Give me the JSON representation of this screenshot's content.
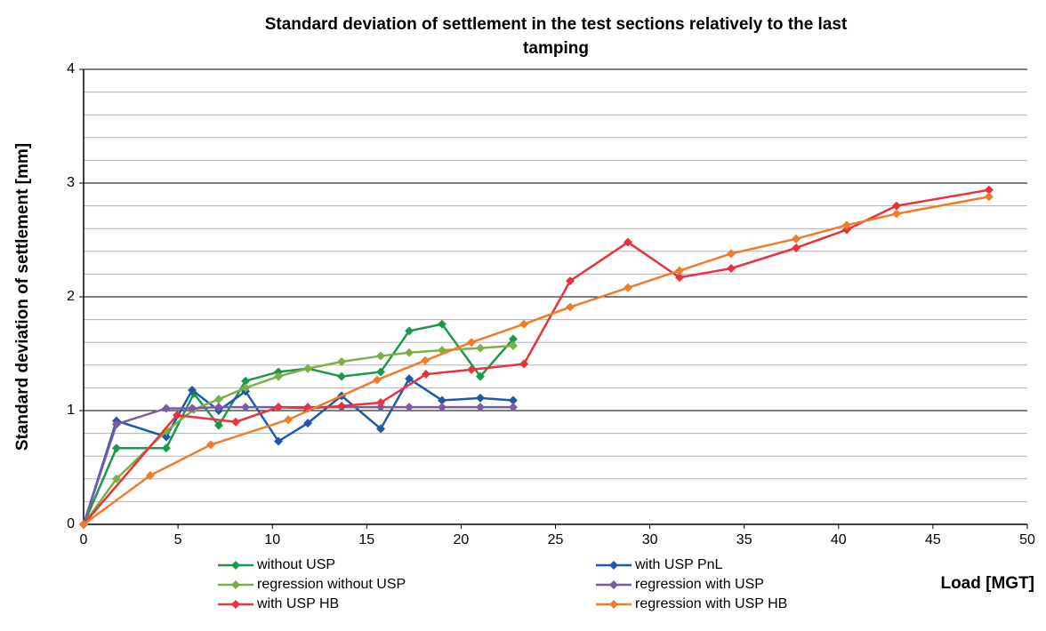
{
  "chart_data": {
    "type": "line",
    "title": [
      "Standard deviation of settlement in the test sections relatively to the last",
      "tamping"
    ],
    "x_label": "Load [MGT]",
    "y_label": "Standard deviation of settlement [mm]",
    "xlim": [
      0,
      50
    ],
    "xticks": [
      0,
      5,
      10,
      15,
      20,
      25,
      30,
      35,
      40,
      45,
      50
    ],
    "ylim": [
      0,
      4
    ],
    "yticks": [
      0,
      1,
      2,
      3,
      4
    ],
    "minor_yticks": [
      0.2,
      0.4,
      0.6,
      0.8,
      1.2,
      1.4,
      1.6,
      1.8,
      2.2,
      2.4,
      2.6,
      2.8,
      3.2,
      3.4,
      3.6,
      3.8
    ],
    "grid": true,
    "series": [
      {
        "name": "without USP",
        "color": "#1a9a48",
        "x": [
          0,
          1.74,
          4.38,
          5.84,
          7.16,
          8.58,
          10.32,
          11.88,
          13.67,
          15.74,
          17.25,
          18.99,
          21.02,
          22.76
        ],
        "values": [
          0,
          0.67,
          0.67,
          1.15,
          0.87,
          1.26,
          1.34,
          1.37,
          1.3,
          1.34,
          1.7,
          1.76,
          1.3,
          1.63
        ]
      },
      {
        "name": "with USP PnL",
        "color": "#1f5aa6",
        "x": [
          0,
          1.74,
          4.38,
          5.75,
          7.16,
          8.58,
          10.32,
          11.88,
          13.67,
          15.74,
          17.25,
          18.99,
          21.02,
          22.76
        ],
        "values": [
          0,
          0.91,
          0.77,
          1.18,
          1.0,
          1.17,
          0.73,
          0.89,
          1.13,
          0.84,
          1.28,
          1.09,
          1.11,
          1.09
        ]
      },
      {
        "name": "regression without USP",
        "color": "#7cb046",
        "x": [
          0,
          1.74,
          4.38,
          5.84,
          7.16,
          8.58,
          10.32,
          11.88,
          13.67,
          15.74,
          17.25,
          18.99,
          21.02,
          22.76
        ],
        "values": [
          0,
          0.4,
          0.82,
          1.01,
          1.1,
          1.2,
          1.3,
          1.37,
          1.43,
          1.48,
          1.51,
          1.53,
          1.55,
          1.57
        ]
      },
      {
        "name": "regression with USP",
        "color": "#7b5aa6",
        "x": [
          0,
          1.74,
          4.38,
          5.75,
          7.16,
          8.58,
          10.32,
          11.88,
          13.67,
          15.74,
          17.25,
          18.99,
          21.02,
          22.76
        ],
        "values": [
          0,
          0.88,
          1.02,
          1.02,
          1.03,
          1.03,
          1.03,
          1.03,
          1.03,
          1.03,
          1.03,
          1.03,
          1.03,
          1.03
        ]
      },
      {
        "name": "with USP HB",
        "color": "#e8323c",
        "x": [
          0,
          4.95,
          8.06,
          10.32,
          11.88,
          13.67,
          15.74,
          18.14,
          20.55,
          23.33,
          25.78,
          28.84,
          31.57,
          34.31,
          37.75,
          40.43,
          43.07,
          47.97
        ],
        "values": [
          0,
          0.96,
          0.9,
          1.03,
          1.02,
          1.04,
          1.07,
          1.32,
          1.36,
          1.41,
          2.14,
          2.48,
          2.17,
          2.25,
          2.43,
          2.59,
          2.8,
          2.94
        ]
      },
      {
        "name": "regression with USP HB",
        "color": "#f07c2a",
        "x": [
          0,
          3.53,
          6.74,
          10.84,
          15.55,
          18.1,
          20.55,
          23.33,
          25.78,
          28.84,
          31.57,
          34.31,
          37.75,
          40.43,
          43.07,
          47.97
        ],
        "values": [
          0,
          0.43,
          0.7,
          0.92,
          1.27,
          1.44,
          1.6,
          1.76,
          1.91,
          2.08,
          2.23,
          2.38,
          2.51,
          2.63,
          2.73,
          2.88
        ]
      }
    ]
  }
}
